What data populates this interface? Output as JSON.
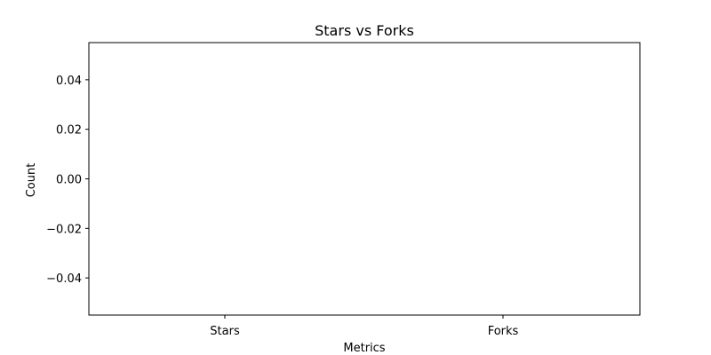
{
  "chart_data": {
    "type": "bar",
    "title": "Stars vs Forks",
    "xlabel": "Metrics",
    "ylabel": "Count",
    "categories": [
      "Stars",
      "Forks"
    ],
    "values": [
      0,
      0
    ],
    "ylim": [
      -0.055,
      0.055
    ],
    "yticks": [
      0.04,
      0.02,
      0.0,
      -0.02,
      -0.04
    ],
    "ytick_labels": [
      "0.04",
      "0.02",
      "0.00",
      "−0.02",
      "−0.04"
    ],
    "grid": false,
    "colors": {
      "axes": "#000000",
      "background": "#ffffff",
      "bar": "#1f77b4"
    }
  }
}
